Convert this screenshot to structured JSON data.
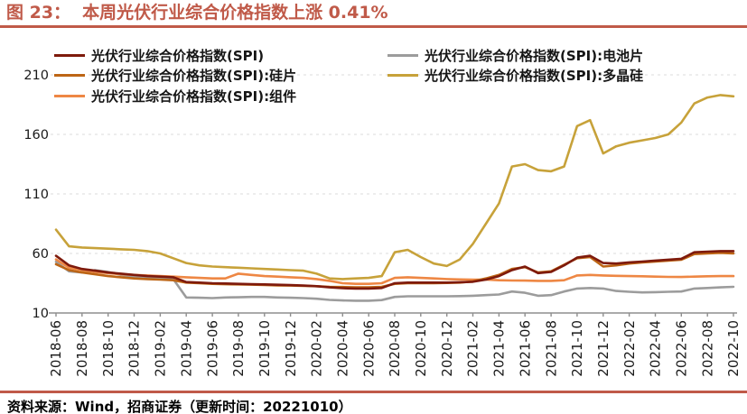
{
  "header": {
    "figure_label": "图 23：",
    "title": "本周光伏行业综合价格指数上涨 0.41%"
  },
  "footer": {
    "source": "资料来源：Wind，招商证券（更新时间：20221010）"
  },
  "colors": {
    "accent": "#C05A49",
    "axis": "#8E8E8E",
    "grid": "#DBDBDB",
    "text": "#1A1A1A"
  },
  "chart_data": {
    "type": "line",
    "title": "本周光伏行业综合价格指数上涨 0.41%",
    "xlabel": "",
    "ylabel": "",
    "ylim": [
      10,
      210
    ],
    "yticks": [
      10,
      60,
      110,
      160,
      210
    ],
    "grid": "horizontal-dashed",
    "legend_position": "top",
    "xtick_every": 2,
    "draw_order": [
      3,
      2,
      1,
      0,
      4
    ],
    "x": [
      "2018-06",
      "2018-07",
      "2018-08",
      "2018-09",
      "2018-10",
      "2018-11",
      "2018-12",
      "2019-01",
      "2019-02",
      "2019-03",
      "2019-04",
      "2019-05",
      "2019-06",
      "2019-07",
      "2019-08",
      "2019-09",
      "2019-10",
      "2019-11",
      "2019-12",
      "2020-01",
      "2020-02",
      "2020-03",
      "2020-04",
      "2020-05",
      "2020-06",
      "2020-07",
      "2020-08",
      "2020-09",
      "2020-10",
      "2020-11",
      "2020-12",
      "2021-01",
      "2021-02",
      "2021-03",
      "2021-04",
      "2021-05",
      "2021-06",
      "2021-07",
      "2021-08",
      "2021-09",
      "2021-10",
      "2021-11",
      "2021-12",
      "2022-01",
      "2022-02",
      "2022-03",
      "2022-04",
      "2022-05",
      "2022-06",
      "2022-07",
      "2022-08",
      "2022-09",
      "2022-10"
    ],
    "series": [
      {
        "name": "光伏行业综合价格指数(SPI)",
        "color": "#7E1A0C",
        "values": [
          58,
          50,
          47,
          45.5,
          44,
          43,
          42,
          41,
          40.5,
          40,
          36,
          35.5,
          35,
          34.8,
          34.5,
          34.2,
          34,
          33.7,
          33.4,
          33,
          32.5,
          31.5,
          30.8,
          30.5,
          30.5,
          31,
          35,
          35.5,
          35.5,
          35.5,
          35.5,
          35.8,
          36.2,
          38,
          41,
          46,
          49,
          43.5,
          44.5,
          50,
          56.5,
          58,
          52,
          51.5,
          52.5,
          53.2,
          54,
          54.8,
          55.5,
          61,
          61.5,
          62,
          62
        ]
      },
      {
        "name": "光伏行业综合价格指数(SPI):硅片",
        "color": "#BD6515",
        "values": [
          51,
          46,
          44,
          42.5,
          41,
          40,
          39,
          38.5,
          38,
          37.5,
          35.5,
          35,
          34.5,
          34.2,
          34,
          33.8,
          33.5,
          33.2,
          33,
          32.8,
          32.5,
          32,
          31.8,
          31.5,
          31.5,
          32,
          34.5,
          35,
          35,
          35,
          35.2,
          35.5,
          36.5,
          39,
          42,
          47,
          48.5,
          44,
          45,
          50.5,
          56,
          57,
          49,
          50,
          51.5,
          52.5,
          53.2,
          54,
          54.8,
          59.5,
          60,
          60.5,
          60
        ]
      },
      {
        "name": "光伏行业综合价格指数(SPI):组件",
        "color": "#EE8744",
        "values": [
          55,
          48,
          46,
          44.5,
          43.5,
          42.5,
          42,
          41.5,
          41,
          40.5,
          40,
          39.5,
          39,
          39,
          43,
          42,
          41,
          40.5,
          40,
          39.5,
          38.5,
          37,
          35,
          34.5,
          34.5,
          35,
          39.5,
          40,
          39.5,
          39,
          38.5,
          38.2,
          38,
          38,
          37.5,
          37.3,
          37.2,
          37,
          37,
          37.5,
          41.5,
          42,
          41.5,
          41.2,
          41,
          40.8,
          40.5,
          40.3,
          40.2,
          40.5,
          40.8,
          41,
          41
        ]
      },
      {
        "name": "光伏行业综合价格指数(SPI):电池片",
        "color": "#9C9C9C",
        "values": [
          53,
          45,
          44,
          46,
          44.5,
          42,
          40.5,
          39.5,
          39,
          38.5,
          23,
          22.8,
          22.5,
          23,
          23.2,
          23.5,
          23.5,
          23,
          22.8,
          22.5,
          22,
          21,
          20.5,
          20.3,
          20.3,
          20.8,
          23.5,
          24,
          24,
          24,
          24,
          24.2,
          24.5,
          25,
          25.5,
          28,
          27,
          24.5,
          25,
          28,
          30.5,
          31,
          30.5,
          28.5,
          27.8,
          27.3,
          27.5,
          27.8,
          28,
          30.5,
          31,
          31.5,
          32
        ]
      },
      {
        "name": "光伏行业综合价格指数(SPI):多晶硅",
        "color": "#C7A23A",
        "values": [
          80,
          66,
          65,
          64.5,
          64,
          63.5,
          63,
          62,
          60,
          56,
          52,
          50,
          49,
          48.5,
          48,
          47.5,
          47,
          46.5,
          46,
          45.5,
          43,
          39,
          38.5,
          39,
          39.5,
          41,
          61,
          63,
          57,
          51.5,
          49.5,
          55,
          68,
          85,
          102,
          133,
          135,
          130,
          129,
          133,
          167,
          172,
          144,
          150,
          153,
          155,
          157,
          160,
          170,
          186,
          191,
          193,
          192
        ]
      }
    ]
  }
}
